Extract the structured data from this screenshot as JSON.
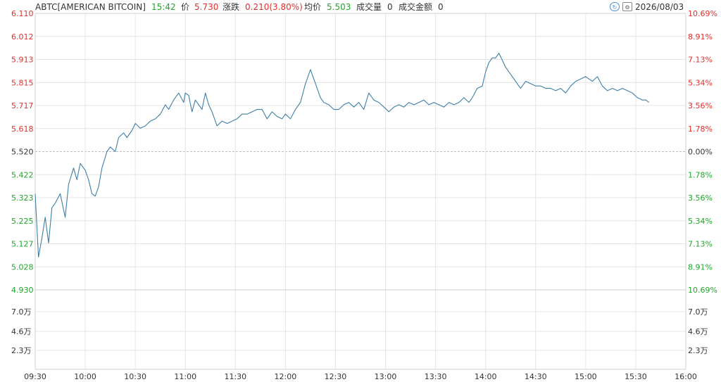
{
  "header": {
    "symbol": "ABTC[AMERICAN BITCOIN]",
    "time": "15:42",
    "price_label": "价",
    "price": "5.730",
    "change_label": "涨跌",
    "change": "0.210(3.80%)",
    "avg_label": "均价",
    "avg": "5.503",
    "volume_label": "成交量",
    "volume": "0",
    "amount_label": "成交金额",
    "amount": "0",
    "date": "2026/08/03",
    "icons": [
      "refresh-icon",
      "settings-icon"
    ]
  },
  "colors": {
    "up": "#e0302c",
    "down": "#21a52a",
    "line": "#3e7fa8",
    "grid": "#e4e4e4",
    "text": "#333333"
  },
  "chart_data": {
    "type": "line",
    "title": "",
    "xlabel": "",
    "ylabel": "",
    "prev_close": 5.52,
    "ylim": [
      4.93,
      6.11
    ],
    "y_ticks_left": [
      "6.110",
      "6.012",
      "5.913",
      "5.815",
      "5.717",
      "5.618",
      "5.520",
      "5.422",
      "5.323",
      "5.225",
      "5.127",
      "5.028",
      "4.930"
    ],
    "y_ticks_right": [
      "10.69%",
      "8.91%",
      "7.13%",
      "5.34%",
      "3.56%",
      "1.78%",
      "0.00%",
      "1.78%",
      "3.56%",
      "5.34%",
      "7.13%",
      "8.91%",
      "10.69%"
    ],
    "x_ticks": [
      "09:30",
      "10:00",
      "10:30",
      "11:00",
      "11:30",
      "12:00",
      "12:30",
      "13:00",
      "13:30",
      "14:00",
      "14:30",
      "15:00",
      "15:30",
      "16:00"
    ],
    "volume_ticks": [
      "7.0万",
      "4.6万",
      "2.3万"
    ],
    "volume_max": 93000,
    "series": [
      {
        "x": [
          "09:30",
          "09:31",
          "09:32",
          "09:34",
          "09:36",
          "09:38",
          "09:40",
          "09:42",
          "09:45",
          "09:48",
          "09:50",
          "09:53",
          "09:55",
          "09:57",
          "10:00",
          "10:02",
          "10:04",
          "10:06",
          "10:08",
          "10:10",
          "10:13",
          "10:15",
          "10:18",
          "10:20",
          "10:23",
          "10:25",
          "10:28",
          "10:30",
          "10:33",
          "10:36",
          "10:39",
          "10:42",
          "10:45",
          "10:48",
          "10:50",
          "10:53",
          "10:56",
          "10:59",
          "11:00",
          "11:02",
          "11:04",
          "11:06",
          "11:08",
          "11:10",
          "11:12",
          "11:14",
          "11:16",
          "11:19",
          "11:22",
          "11:25",
          "11:28",
          "11:31",
          "11:34",
          "11:37",
          "11:40",
          "11:43",
          "11:46",
          "11:49",
          "11:52",
          "11:55",
          "11:58",
          "12:00",
          "12:03",
          "12:06",
          "12:09",
          "12:12",
          "12:15",
          "12:17",
          "12:19",
          "12:21",
          "12:23",
          "12:26",
          "12:29",
          "12:32",
          "12:35",
          "12:38",
          "12:41",
          "12:44",
          "12:47",
          "12:50",
          "12:53",
          "12:56",
          "12:59",
          "13:02",
          "13:05",
          "13:08",
          "13:11",
          "13:14",
          "13:17",
          "13:20",
          "13:23",
          "13:26",
          "13:29",
          "13:32",
          "13:35",
          "13:38",
          "13:41",
          "13:44",
          "13:47",
          "13:50",
          "13:52",
          "13:55",
          "13:58",
          "14:00",
          "14:02",
          "14:04",
          "14:06",
          "14:08",
          "14:10",
          "14:12",
          "14:15",
          "14:18",
          "14:21",
          "14:24",
          "14:27",
          "14:30",
          "14:33",
          "14:36",
          "14:39",
          "14:42",
          "14:45",
          "14:48",
          "14:51",
          "14:54",
          "14:57",
          "15:00",
          "15:02",
          "15:04",
          "15:07",
          "15:10",
          "15:13",
          "15:16",
          "15:19",
          "15:22",
          "15:25",
          "15:28",
          "15:31",
          "15:34",
          "15:36",
          "15:38"
        ],
        "values": [
          5.34,
          5.2,
          5.07,
          5.15,
          5.24,
          5.13,
          5.28,
          5.3,
          5.34,
          5.24,
          5.38,
          5.45,
          5.4,
          5.47,
          5.44,
          5.4,
          5.34,
          5.33,
          5.37,
          5.45,
          5.52,
          5.54,
          5.52,
          5.58,
          5.6,
          5.58,
          5.61,
          5.64,
          5.62,
          5.63,
          5.65,
          5.66,
          5.68,
          5.72,
          5.7,
          5.74,
          5.77,
          5.73,
          5.77,
          5.76,
          5.69,
          5.74,
          5.72,
          5.7,
          5.77,
          5.72,
          5.69,
          5.63,
          5.65,
          5.64,
          5.65,
          5.66,
          5.68,
          5.68,
          5.69,
          5.7,
          5.7,
          5.66,
          5.69,
          5.67,
          5.66,
          5.68,
          5.66,
          5.7,
          5.73,
          5.81,
          5.87,
          5.83,
          5.79,
          5.75,
          5.73,
          5.72,
          5.7,
          5.7,
          5.72,
          5.73,
          5.71,
          5.73,
          5.7,
          5.77,
          5.74,
          5.73,
          5.71,
          5.69,
          5.71,
          5.72,
          5.71,
          5.73,
          5.72,
          5.73,
          5.74,
          5.72,
          5.73,
          5.72,
          5.71,
          5.73,
          5.72,
          5.73,
          5.75,
          5.73,
          5.75,
          5.79,
          5.8,
          5.86,
          5.9,
          5.92,
          5.92,
          5.94,
          5.91,
          5.88,
          5.85,
          5.82,
          5.79,
          5.82,
          5.81,
          5.8,
          5.8,
          5.79,
          5.79,
          5.78,
          5.79,
          5.77,
          5.8,
          5.82,
          5.83,
          5.84,
          5.83,
          5.82,
          5.84,
          5.8,
          5.78,
          5.79,
          5.78,
          5.79,
          5.78,
          5.77,
          5.75,
          5.74,
          5.74,
          5.73
        ]
      }
    ]
  }
}
